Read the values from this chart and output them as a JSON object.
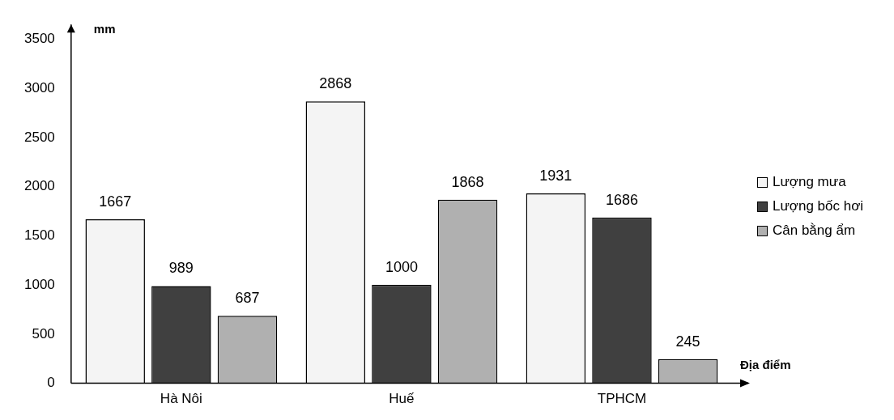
{
  "chart_data": {
    "type": "bar",
    "ylabel": "mm",
    "xlabel": "Địa điểm",
    "categories": [
      "Hà Nôi",
      "Huế",
      "TPHCM"
    ],
    "series": [
      {
        "name": "Lượng mưa",
        "color": "#f4f4f4",
        "values": [
          1667,
          2868,
          1931
        ]
      },
      {
        "name": "Lượng bốc hơi",
        "color": "#404040",
        "values": [
          989,
          1000,
          1686
        ]
      },
      {
        "name": "Cân bằng ẩm",
        "color": "#b0b0b0",
        "values": [
          687,
          1868,
          245
        ]
      }
    ],
    "ylim": [
      0,
      3650
    ],
    "yticks": [
      0,
      500,
      1000,
      1500,
      2000,
      2500,
      3000,
      3500
    ],
    "data_labels": true,
    "grid": false,
    "legend": "right"
  }
}
